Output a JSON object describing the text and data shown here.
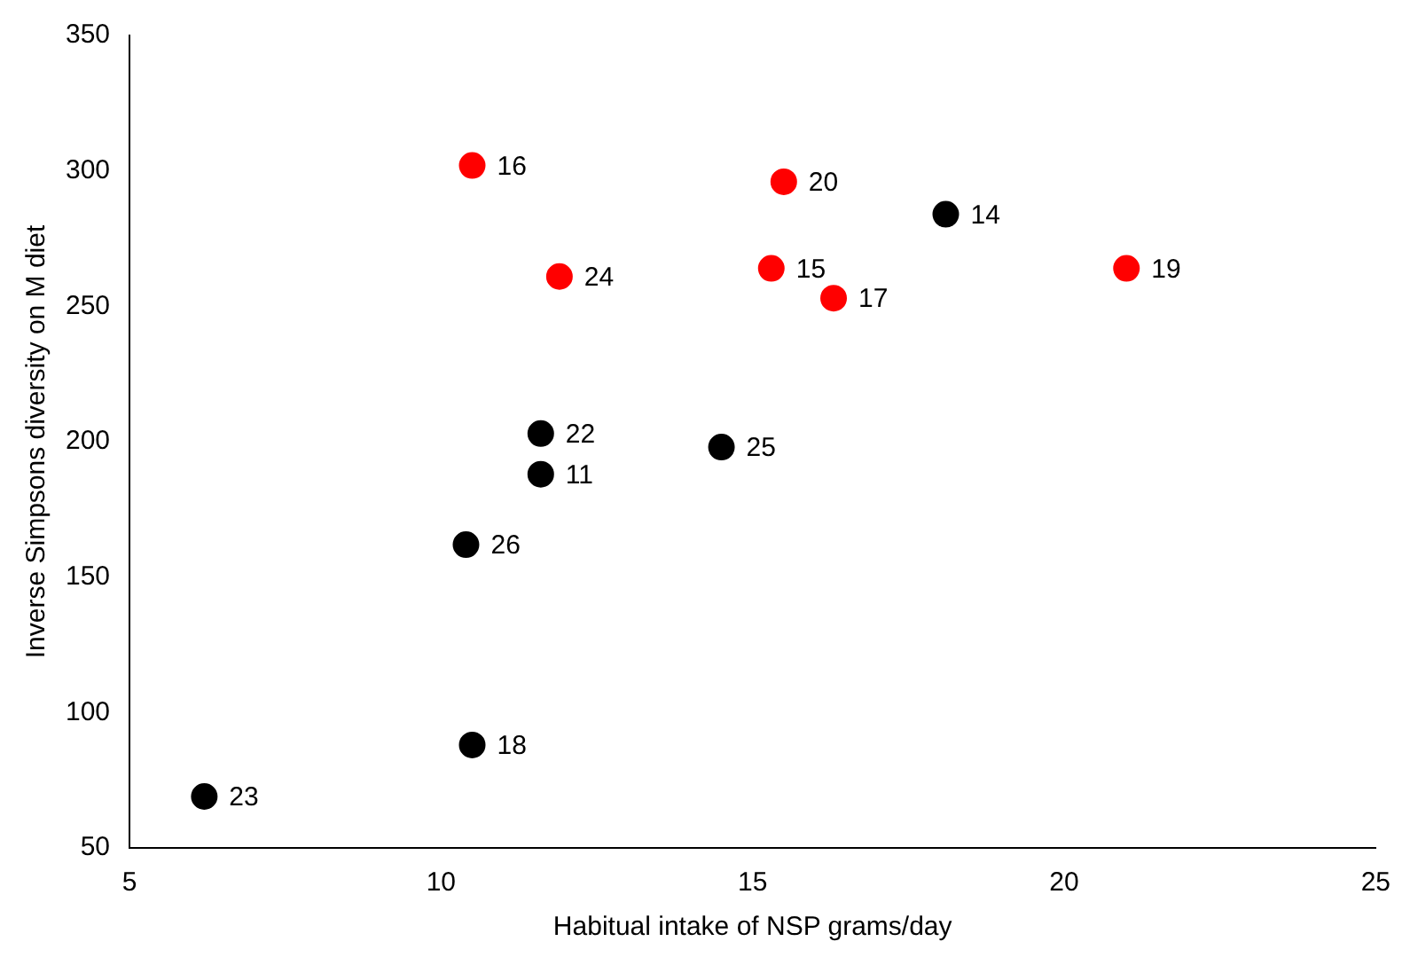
{
  "chart_data": {
    "type": "scatter",
    "xlabel": "Habitual intake of NSP grams/day",
    "ylabel": "Inverse Simpsons diversity on M diet",
    "series": [
      {
        "color": "#ff0000",
        "x": [
          10.5,
          15.5,
          15.3,
          21.0,
          11.9,
          16.3
        ],
        "values": [
          302,
          296,
          264,
          264,
          261,
          253
        ]
      },
      {
        "color": "#000000",
        "x": [
          18.1,
          11.6,
          11.6,
          14.5,
          10.4,
          10.5,
          6.2
        ],
        "values": [
          284,
          203,
          188,
          198,
          162,
          88,
          69
        ]
      }
    ],
    "annotations": [
      {
        "text": "16",
        "x": 10.5,
        "y": 302
      },
      {
        "text": "20",
        "x": 15.5,
        "y": 296
      },
      {
        "text": "15",
        "x": 15.3,
        "y": 264
      },
      {
        "text": "19",
        "x": 21.0,
        "y": 264
      },
      {
        "text": "24",
        "x": 11.9,
        "y": 261
      },
      {
        "text": "17",
        "x": 16.3,
        "y": 253
      },
      {
        "text": "14",
        "x": 18.1,
        "y": 284
      },
      {
        "text": "22",
        "x": 11.6,
        "y": 203
      },
      {
        "text": "11",
        "x": 11.6,
        "y": 188
      },
      {
        "text": "25",
        "x": 14.5,
        "y": 198
      },
      {
        "text": "26",
        "x": 10.4,
        "y": 162
      },
      {
        "text": "18",
        "x": 10.5,
        "y": 88
      },
      {
        "text": "23",
        "x": 6.2,
        "y": 69
      }
    ],
    "xlim": [
      5,
      25
    ],
    "xticks": [
      5,
      10,
      15,
      20,
      25
    ],
    "ylim": [
      50,
      350
    ],
    "yticks": [
      50,
      100,
      150,
      200,
      250,
      300,
      350
    ],
    "marker": "circle",
    "grid": false,
    "legend": false
  }
}
